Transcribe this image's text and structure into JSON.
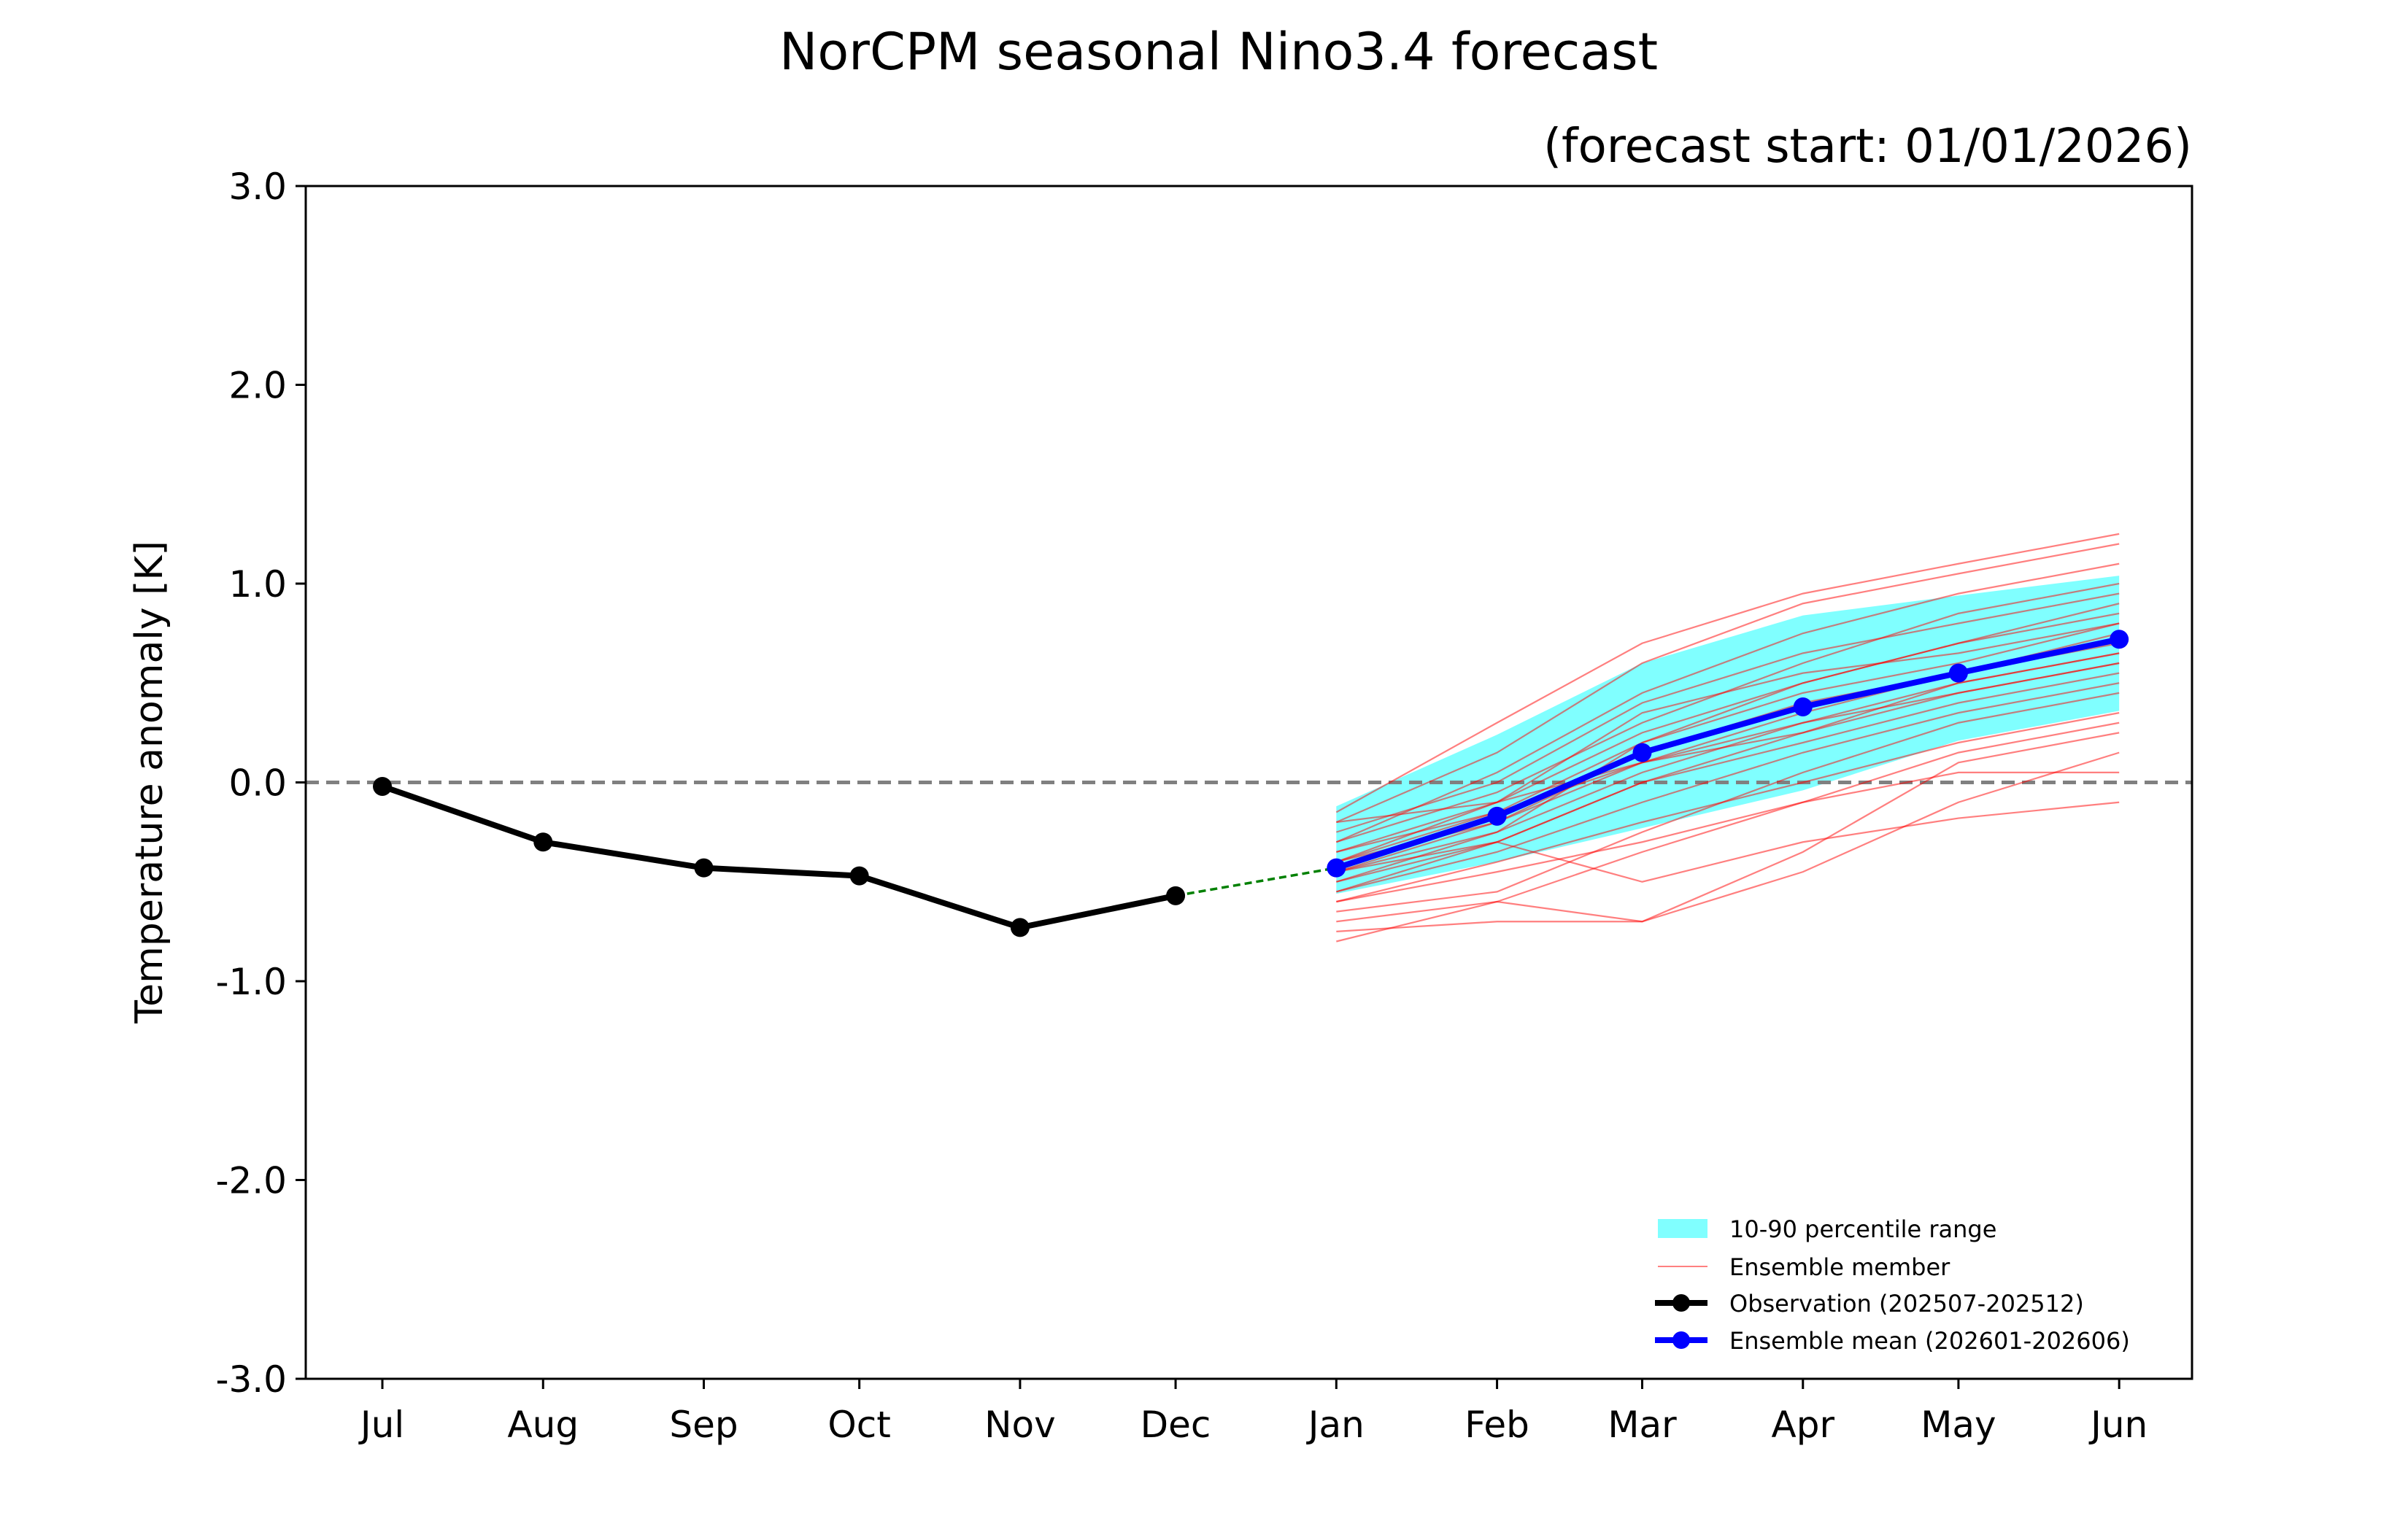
{
  "chart_data": {
    "type": "line",
    "title": "NorCPM seasonal Nino3.4 forecast",
    "subtitle": "(forecast start: 01/01/2026)",
    "xlabel": "",
    "ylabel": "Temperature anomaly [K]",
    "ylim": [
      -3.0,
      3.0
    ],
    "yticks": [
      "3.0",
      "2.0",
      "1.0",
      "0.0",
      "-1.0",
      "-2.0",
      "-3.0"
    ],
    "ytick_values": [
      3,
      2,
      1,
      0,
      -1,
      -2,
      -3
    ],
    "x": [
      "2025-07",
      "2025-08",
      "2025-09",
      "2025-10",
      "2025-11",
      "2025-12",
      "2026-01",
      "2026-02",
      "2026-03",
      "2026-04",
      "2026-05",
      "2026-06"
    ],
    "categories": [
      "Jul",
      "Aug",
      "Sep",
      "Oct",
      "Nov",
      "Dec",
      "Jan",
      "Feb",
      "Mar",
      "Apr",
      "May",
      "Jun"
    ],
    "grid": false,
    "reference_line": {
      "y": 0.0,
      "style": "dashed",
      "color": "#808080"
    },
    "legend_position": "lower-right",
    "observation": {
      "name": "Observation (202507-202512)",
      "color": "#000000",
      "x": [
        "2025-07",
        "2025-08",
        "2025-09",
        "2025-10",
        "2025-11",
        "2025-12"
      ],
      "values": [
        -0.02,
        -0.3,
        -0.43,
        -0.47,
        -0.73,
        -0.57
      ]
    },
    "ensemble_mean": {
      "name": "Ensemble mean (202601-202606)",
      "color": "#0000ff",
      "x": [
        "2026-01",
        "2026-02",
        "2026-03",
        "2026-04",
        "2026-05",
        "2026-06"
      ],
      "values": [
        -0.43,
        -0.17,
        0.15,
        0.38,
        0.55,
        0.72
      ]
    },
    "connector": {
      "color": "#008000",
      "style": "dashed"
    },
    "percentile_range": {
      "name": "10-90 percentile range",
      "color": "#80ffff",
      "lower": [
        -0.56,
        -0.4,
        -0.23,
        -0.04,
        0.21,
        0.36
      ],
      "upper": [
        -0.12,
        0.24,
        0.6,
        0.84,
        0.94,
        1.04
      ]
    },
    "ensemble_members": {
      "name": "Ensemble member",
      "color": "#ff0000",
      "values": [
        [
          -0.45,
          -0.2,
          0.1,
          0.35,
          0.55,
          0.7
        ],
        [
          -0.3,
          0.05,
          0.45,
          0.75,
          0.95,
          1.1
        ],
        [
          -0.6,
          -0.45,
          -0.3,
          -0.1,
          0.15,
          0.3
        ],
        [
          -0.2,
          0.15,
          0.6,
          0.9,
          1.05,
          1.2
        ],
        [
          -0.5,
          -0.3,
          0.0,
          0.2,
          0.4,
          0.55
        ],
        [
          -0.35,
          -0.1,
          0.25,
          0.5,
          0.7,
          0.85
        ],
        [
          -0.7,
          -0.6,
          -0.7,
          -0.35,
          0.1,
          0.25
        ],
        [
          -0.55,
          -0.35,
          -0.1,
          0.15,
          0.35,
          0.5
        ],
        [
          -0.4,
          -0.15,
          0.2,
          0.45,
          0.6,
          0.8
        ],
        [
          -0.25,
          0.0,
          0.4,
          0.65,
          0.8,
          0.95
        ],
        [
          -0.8,
          -0.6,
          -0.35,
          -0.1,
          0.05,
          0.05
        ],
        [
          -0.5,
          -0.25,
          0.05,
          0.3,
          0.5,
          0.65
        ],
        [
          -0.45,
          -0.3,
          -0.5,
          -0.3,
          -0.18,
          -0.1
        ],
        [
          -0.3,
          -0.05,
          0.3,
          0.6,
          0.85,
          1.0
        ],
        [
          -0.6,
          -0.4,
          -0.2,
          0.0,
          0.2,
          0.35
        ],
        [
          -0.4,
          -0.2,
          0.15,
          0.4,
          0.55,
          0.75
        ],
        [
          -0.35,
          -0.15,
          0.1,
          0.3,
          0.45,
          0.6
        ],
        [
          -0.15,
          0.3,
          0.7,
          0.95,
          1.1,
          1.25
        ],
        [
          -0.55,
          -0.3,
          0.0,
          0.25,
          0.45,
          0.6
        ],
        [
          -0.45,
          -0.25,
          0.2,
          0.5,
          0.7,
          0.9
        ],
        [
          -0.65,
          -0.55,
          -0.25,
          0.05,
          0.3,
          0.45
        ],
        [
          -0.2,
          -0.1,
          0.1,
          0.25,
          0.5,
          0.65
        ],
        [
          -0.75,
          -0.7,
          -0.7,
          -0.45,
          -0.1,
          0.15
        ],
        [
          -0.4,
          -0.1,
          0.35,
          0.55,
          0.65,
          0.8
        ]
      ]
    },
    "legend": [
      {
        "label": "10-90 percentile range"
      },
      {
        "label": "Ensemble member"
      },
      {
        "label": "Observation (202507-202512)"
      },
      {
        "label": "Ensemble mean (202601-202606)"
      }
    ]
  }
}
